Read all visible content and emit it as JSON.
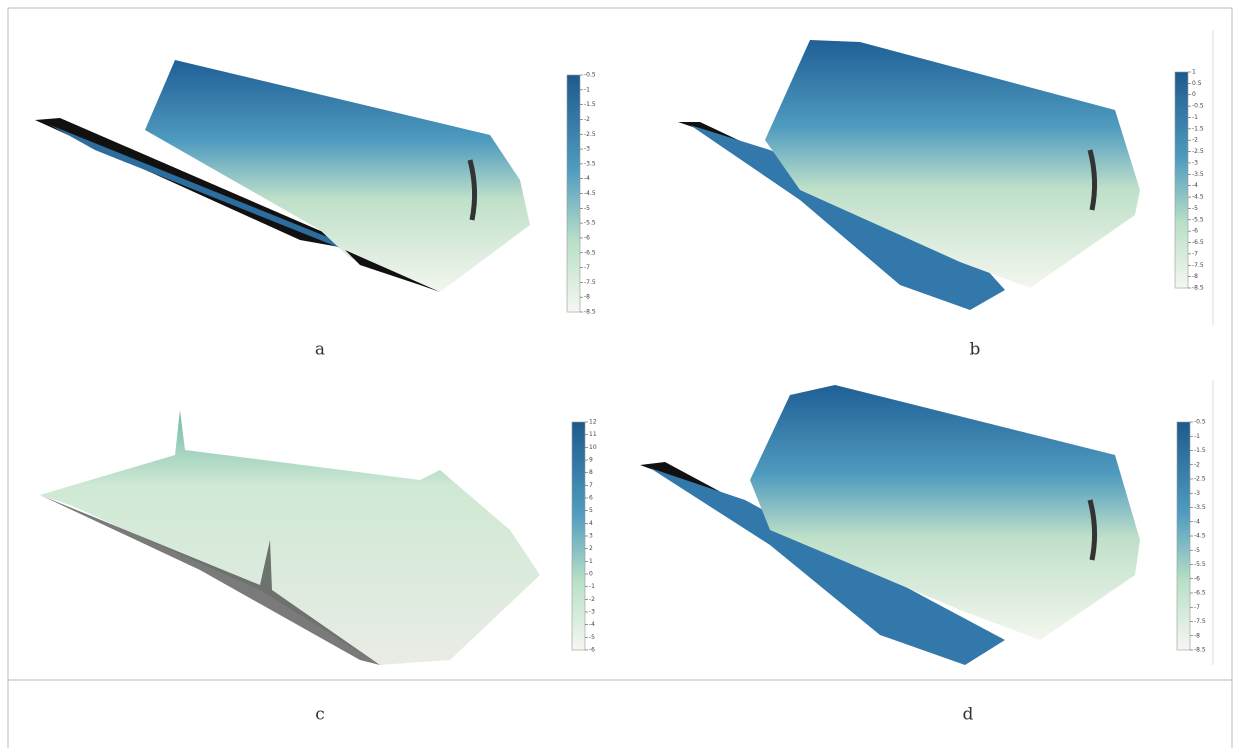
{
  "panels": [
    {
      "label": "a",
      "colorbar": {
        "ylim": [
          -8.5,
          -0.5
        ],
        "yticks": [
          -0.5,
          -1,
          -1.5,
          -2,
          -2.5,
          -3,
          -3.5,
          -4,
          -4.5,
          -5,
          -5.5,
          -6,
          -6.5,
          -7,
          -7.5,
          -8,
          -8.5
        ]
      }
    },
    {
      "label": "b",
      "colorbar": {
        "ylim": [
          -8.5,
          1
        ],
        "yticks": [
          1,
          0.5,
          0,
          -0.5,
          -1,
          -1.5,
          -2,
          -2.5,
          -3,
          -3.5,
          -4,
          -4.5,
          -5,
          -5.5,
          -6,
          -6.5,
          -7,
          -7.5,
          -8,
          -8.5
        ]
      }
    },
    {
      "label": "c",
      "colorbar": {
        "ylim": [
          -6,
          12
        ],
        "yticks": [
          12,
          11,
          10,
          9,
          8,
          7,
          6,
          5,
          4,
          3,
          2,
          1,
          0,
          -1,
          -2,
          -3,
          -4,
          -5,
          -6
        ]
      }
    },
    {
      "label": "d",
      "colorbar": {
        "ylim": [
          -8.5,
          -0.5
        ],
        "yticks": [
          -0.5,
          -1,
          -1.5,
          -2,
          -2.5,
          -3,
          -3.5,
          -4,
          -4.5,
          -5,
          -5.5,
          -6,
          -6.5,
          -7,
          -7.5,
          -8,
          -8.5
        ]
      }
    }
  ]
}
